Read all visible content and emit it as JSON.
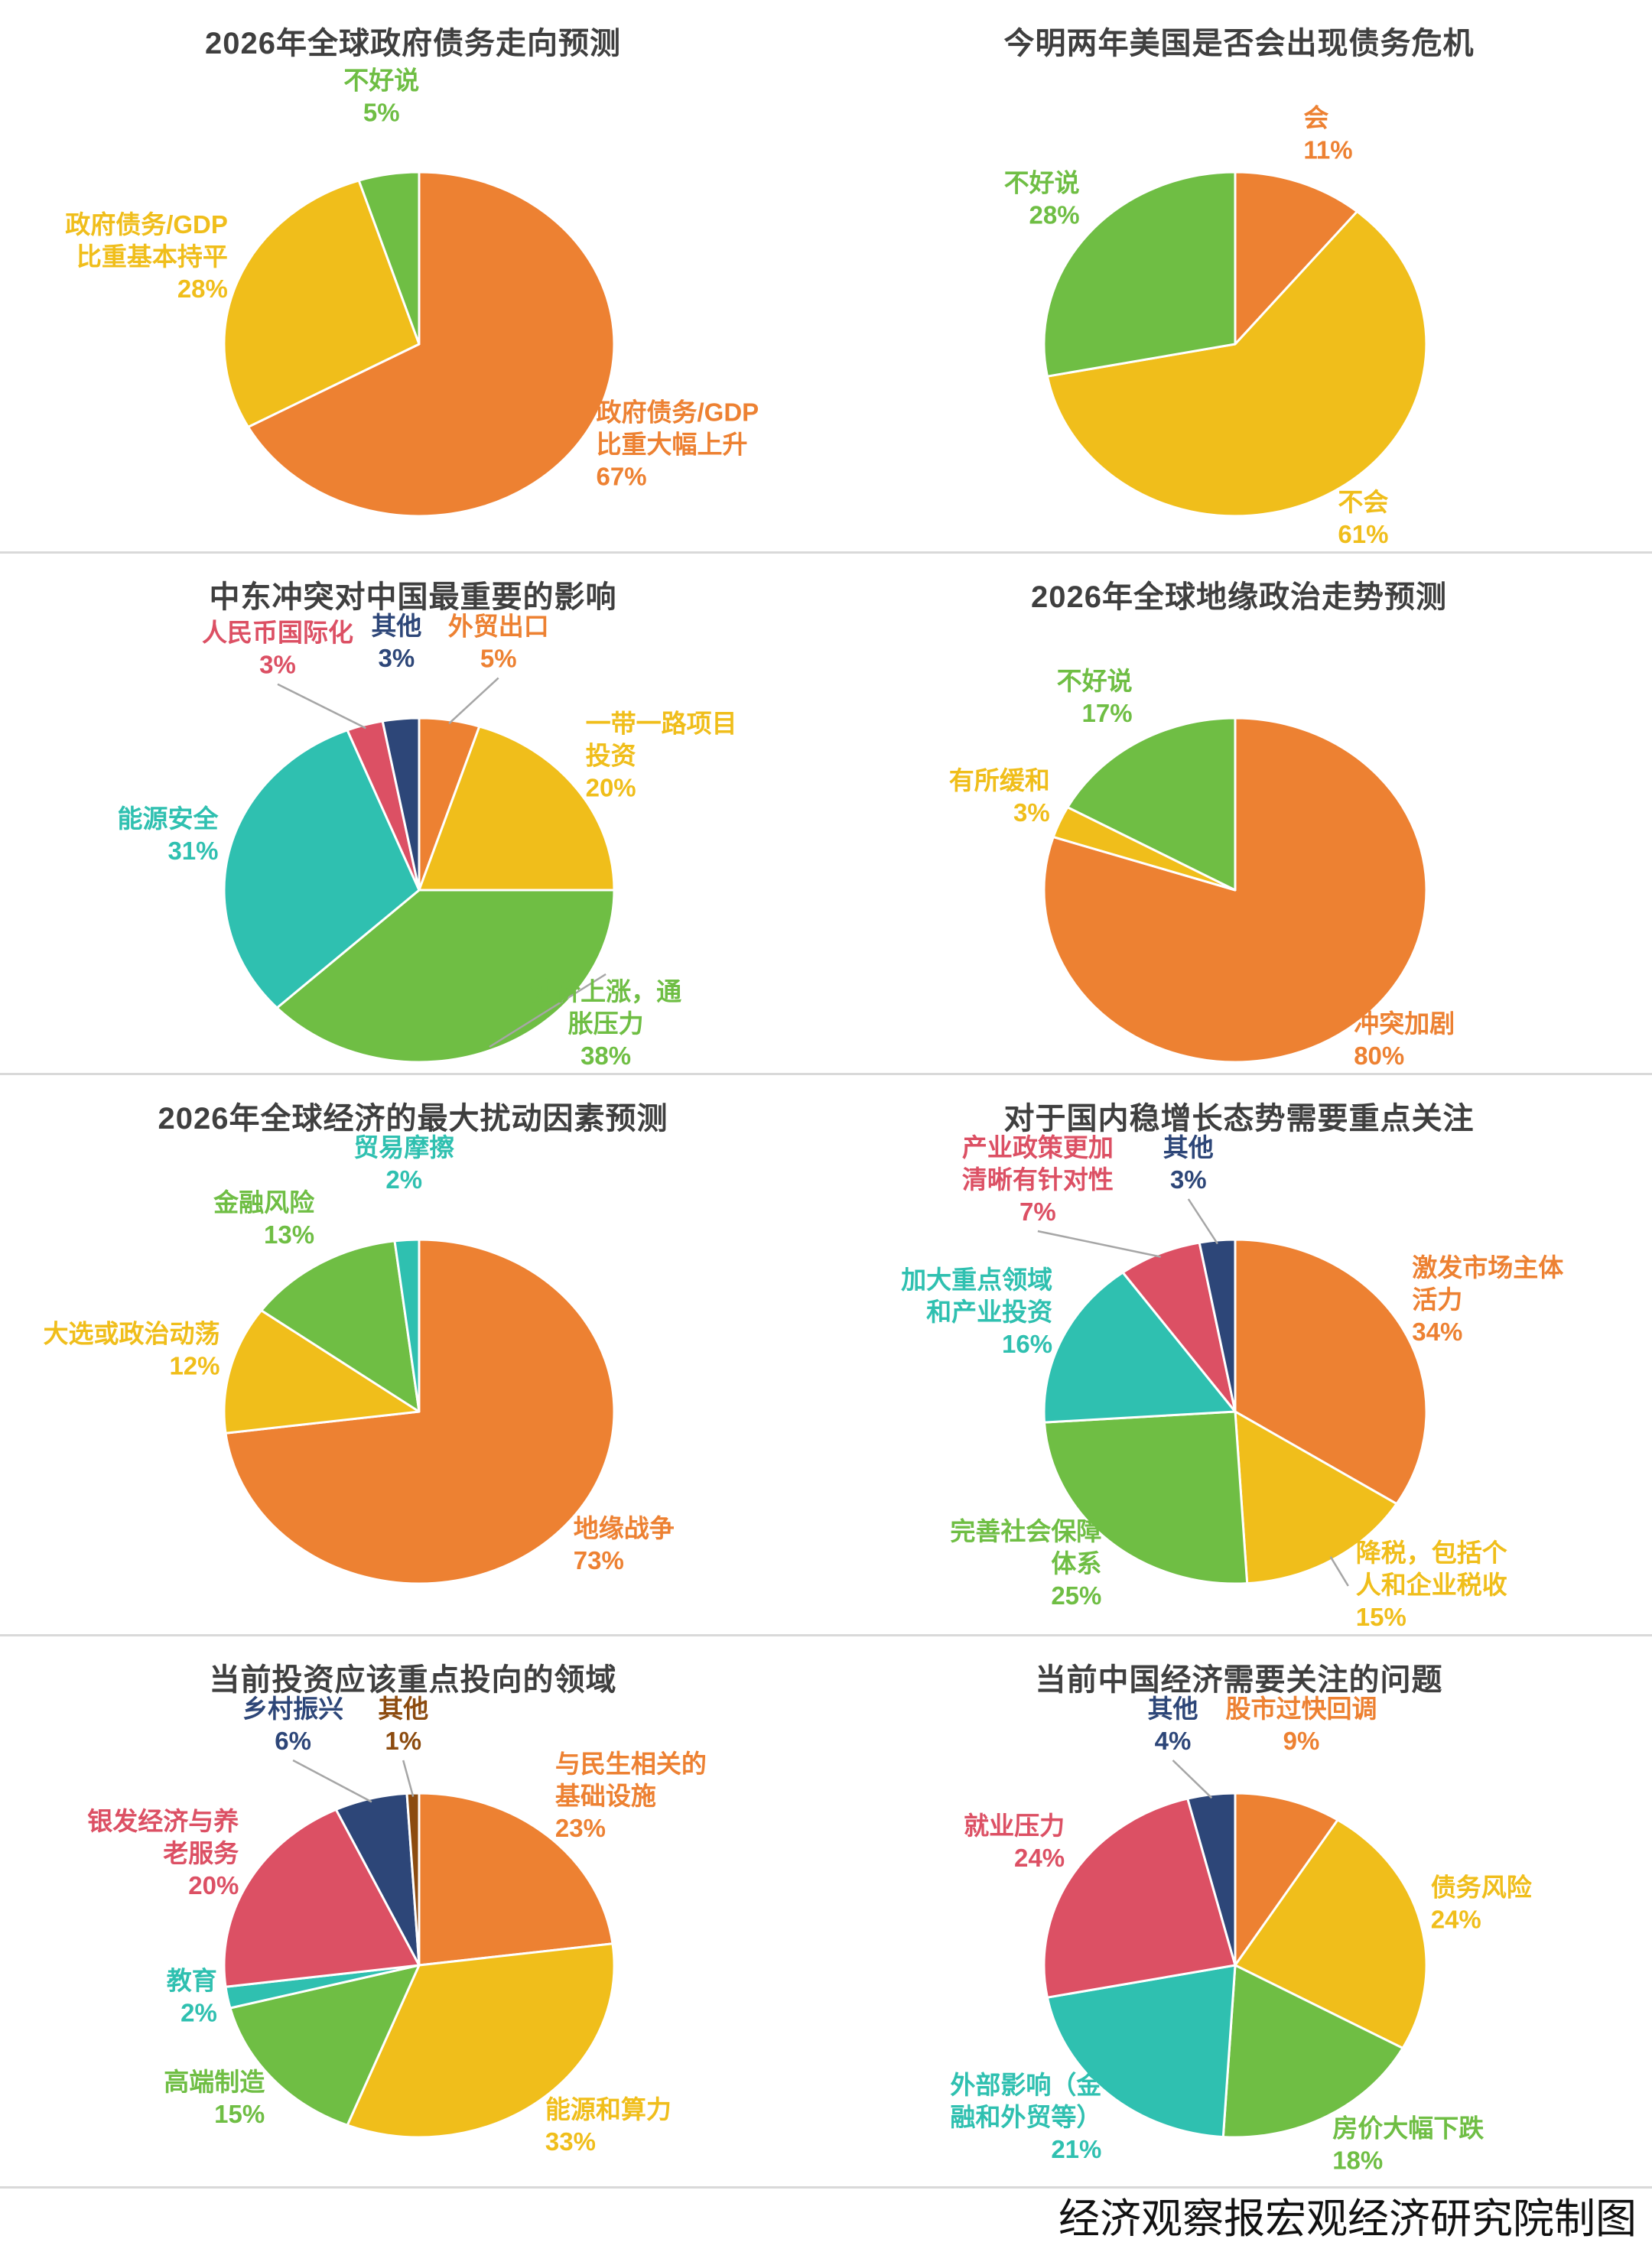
{
  "page": {
    "background": "#ffffff",
    "footer_credit": "经济观察报宏观经济研究院制图",
    "divider_color": "#d9d9d9",
    "title_color": "#3f3f3f",
    "leader_line_color": "#a6a6a6"
  },
  "palette": {
    "orange": "#ED8132",
    "gold": "#F0BE1B",
    "green": "#6FBE44",
    "teal": "#2FC0B0",
    "red": "#DC5064",
    "dark_blue": "#2D4678",
    "brown": "#8C4B0F"
  },
  "chart_data": [
    {
      "type": "pie",
      "title": "2026年全球政府债务走向预测",
      "legend_position": "none",
      "start_angle": "top",
      "direction": "clockwise",
      "slices": [
        {
          "label": "政府债务/GDP\n比重大幅上升",
          "pct": 67,
          "color": "#ED8132",
          "leader": false
        },
        {
          "label": "政府债务/GDP\n比重基本持平",
          "pct": 28,
          "color": "#F0BE1B",
          "leader": false
        },
        {
          "label": "不好说",
          "pct": 5,
          "color": "#6FBE44",
          "leader": false
        }
      ]
    },
    {
      "type": "pie",
      "title": "今明两年美国是否会出现债务危机",
      "legend_position": "none",
      "start_angle": "top",
      "direction": "clockwise",
      "slices": [
        {
          "label": "会",
          "pct": 11,
          "color": "#ED8132",
          "leader": false
        },
        {
          "label": "不会",
          "pct": 61,
          "color": "#F0BE1B",
          "leader": false
        },
        {
          "label": "不好说",
          "pct": 28,
          "color": "#6FBE44",
          "leader": false
        }
      ]
    },
    {
      "type": "pie",
      "title": "中东冲突对中国最重要的影响",
      "legend_position": "none",
      "start_angle": "top",
      "direction": "clockwise",
      "slices": [
        {
          "label": "外贸出口",
          "pct": 5,
          "color": "#ED8132",
          "leader": true
        },
        {
          "label": "一带一路项目\n投资",
          "pct": 20,
          "color": "#F0BE1B",
          "leader": false
        },
        {
          "label": "油价上涨，通\n胀压力",
          "pct": 38,
          "color": "#6FBE44",
          "leader": true
        },
        {
          "label": "能源安全",
          "pct": 31,
          "color": "#2FC0B0",
          "leader": false
        },
        {
          "label": "人民币国际化",
          "pct": 3,
          "color": "#DC5064",
          "leader": true
        },
        {
          "label": "其他",
          "pct": 3,
          "color": "#2D4678",
          "leader": false
        }
      ]
    },
    {
      "type": "pie",
      "title": "2026年全球地缘政治走势预测",
      "legend_position": "none",
      "start_angle": "top",
      "direction": "clockwise",
      "slices": [
        {
          "label": "冲突加剧",
          "pct": 80,
          "color": "#ED8132",
          "leader": false
        },
        {
          "label": "有所缓和",
          "pct": 3,
          "color": "#F0BE1B",
          "leader": false
        },
        {
          "label": "不好说",
          "pct": 17,
          "color": "#6FBE44",
          "leader": false
        }
      ]
    },
    {
      "type": "pie",
      "title": "2026年全球经济的最大扰动因素预测",
      "legend_position": "none",
      "start_angle": "top",
      "direction": "clockwise",
      "slices": [
        {
          "label": "地缘战争",
          "pct": 73,
          "color": "#ED8132",
          "leader": false
        },
        {
          "label": "大选或政治动荡",
          "pct": 12,
          "color": "#F0BE1B",
          "leader": false
        },
        {
          "label": "金融风险",
          "pct": 13,
          "color": "#6FBE44",
          "leader": false
        },
        {
          "label": "贸易摩擦",
          "pct": 2,
          "color": "#2FC0B0",
          "leader": false
        }
      ]
    },
    {
      "type": "pie",
      "title": "对于国内稳增长态势需要重点关注",
      "legend_position": "none",
      "start_angle": "top",
      "direction": "clockwise",
      "slices": [
        {
          "label": "激发市场主体\n活力",
          "pct": 34,
          "color": "#ED8132",
          "leader": false
        },
        {
          "label": "降税，包括个\n人和企业税收",
          "pct": 15,
          "color": "#F0BE1B",
          "leader": true
        },
        {
          "label": "完善社会保障\n体系",
          "pct": 25,
          "color": "#6FBE44",
          "leader": false
        },
        {
          "label": "加大重点领域\n和产业投资",
          "pct": 16,
          "color": "#2FC0B0",
          "leader": false
        },
        {
          "label": "产业政策更加\n清晰有针对性",
          "pct": 7,
          "color": "#DC5064",
          "leader": true
        },
        {
          "label": "其他",
          "pct": 3,
          "color": "#2D4678",
          "leader": true
        }
      ]
    },
    {
      "type": "pie",
      "title": "当前投资应该重点投向的领域",
      "legend_position": "none",
      "start_angle": "top",
      "direction": "clockwise",
      "slices": [
        {
          "label": "与民生相关的\n基础设施",
          "pct": 23,
          "color": "#ED8132",
          "leader": false
        },
        {
          "label": "能源和算力",
          "pct": 33,
          "color": "#F0BE1B",
          "leader": false
        },
        {
          "label": "高端制造",
          "pct": 15,
          "color": "#6FBE44",
          "leader": false
        },
        {
          "label": "教育",
          "pct": 2,
          "color": "#2FC0B0",
          "leader": false
        },
        {
          "label": "银发经济与养\n老服务",
          "pct": 20,
          "color": "#DC5064",
          "leader": false
        },
        {
          "label": "乡村振兴",
          "pct": 6,
          "color": "#2D4678",
          "leader": true
        },
        {
          "label": "其他",
          "pct": 1,
          "color": "#8C4B0F",
          "leader": true
        }
      ]
    },
    {
      "type": "pie",
      "title": "当前中国经济需要关注的问题",
      "legend_position": "none",
      "start_angle": "top",
      "direction": "clockwise",
      "slices": [
        {
          "label": "股市过快回调",
          "pct": 9,
          "color": "#ED8132",
          "leader": false
        },
        {
          "label": "债务风险",
          "pct": 24,
          "color": "#F0BE1B",
          "leader": false
        },
        {
          "label": "房价大幅下跌",
          "pct": 18,
          "color": "#6FBE44",
          "leader": false
        },
        {
          "label": "外部影响（金\n融和外贸等）",
          "pct": 21,
          "color": "#2FC0B0",
          "leader": false
        },
        {
          "label": "就业压力",
          "pct": 24,
          "color": "#DC5064",
          "leader": false
        },
        {
          "label": "其他",
          "pct": 4,
          "color": "#2D4678",
          "leader": true
        }
      ]
    }
  ]
}
